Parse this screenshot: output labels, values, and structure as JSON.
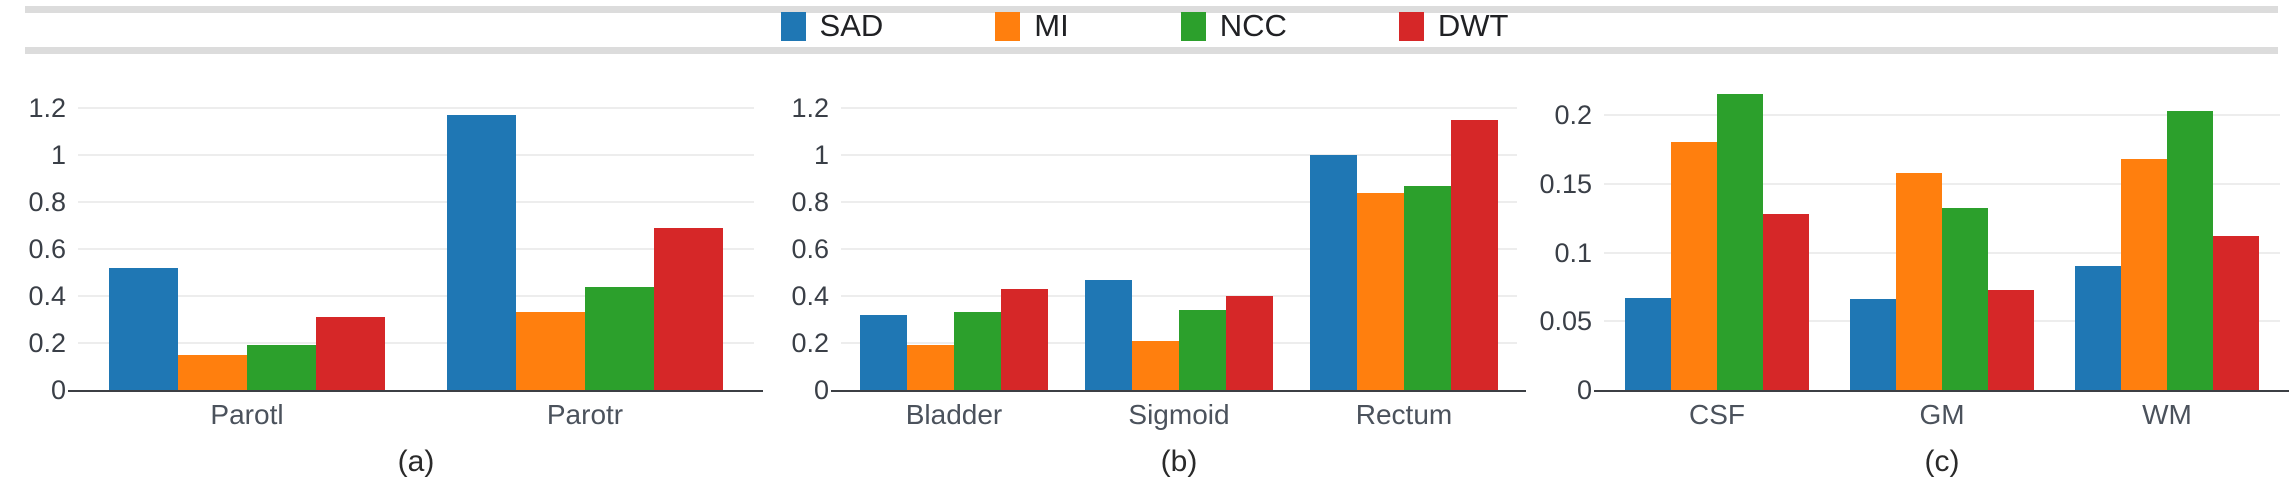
{
  "page": {
    "background": "#ffffff",
    "rule_color": "#dcdcdc"
  },
  "legend": {
    "items": [
      {
        "label": "SAD",
        "color": "#1f77b4"
      },
      {
        "label": "MI",
        "color": "#ff7f0e"
      },
      {
        "label": "NCC",
        "color": "#2ca02c"
      },
      {
        "label": "DWT",
        "color": "#d62728"
      }
    ]
  },
  "chart_data": [
    {
      "type": "bar",
      "panel": "a",
      "caption": "(a)",
      "categories": [
        "Parotl",
        "Parotr"
      ],
      "series": [
        {
          "name": "SAD",
          "color": "#1f77b4",
          "values": [
            0.52,
            1.17
          ]
        },
        {
          "name": "MI",
          "color": "#ff7f0e",
          "values": [
            0.15,
            0.33
          ]
        },
        {
          "name": "NCC",
          "color": "#2ca02c",
          "values": [
            0.19,
            0.44
          ]
        },
        {
          "name": "DWT",
          "color": "#d62728",
          "values": [
            0.31,
            0.69
          ]
        }
      ],
      "ylim": [
        0,
        1.3
      ],
      "yticks": [
        0,
        0.2,
        0.4,
        0.6,
        0.8,
        1,
        1.2
      ],
      "ytick_labels": [
        "0",
        "0.2",
        "0.4",
        "0.6",
        "0.8",
        "1",
        "1.2"
      ],
      "grid": true,
      "legend_position": "shared-top"
    },
    {
      "type": "bar",
      "panel": "b",
      "caption": "(b)",
      "categories": [
        "Bladder",
        "Sigmoid",
        "Rectum"
      ],
      "series": [
        {
          "name": "SAD",
          "color": "#1f77b4",
          "values": [
            0.32,
            0.47,
            1.0
          ]
        },
        {
          "name": "MI",
          "color": "#ff7f0e",
          "values": [
            0.19,
            0.21,
            0.84
          ]
        },
        {
          "name": "NCC",
          "color": "#2ca02c",
          "values": [
            0.33,
            0.34,
            0.87
          ]
        },
        {
          "name": "DWT",
          "color": "#d62728",
          "values": [
            0.43,
            0.4,
            1.15
          ]
        }
      ],
      "ylim": [
        0,
        1.3
      ],
      "yticks": [
        0,
        0.2,
        0.4,
        0.6,
        0.8,
        1,
        1.2
      ],
      "ytick_labels": [
        "0",
        "0.2",
        "0.4",
        "0.6",
        "0.8",
        "1",
        "1.2"
      ],
      "grid": true,
      "legend_position": "shared-top"
    },
    {
      "type": "bar",
      "panel": "c",
      "caption": "(c)",
      "categories": [
        "CSF",
        "GM",
        "WM"
      ],
      "series": [
        {
          "name": "SAD",
          "color": "#1f77b4",
          "values": [
            0.067,
            0.066,
            0.09
          ]
        },
        {
          "name": "MI",
          "color": "#ff7f0e",
          "values": [
            0.18,
            0.158,
            0.168
          ]
        },
        {
          "name": "NCC",
          "color": "#2ca02c",
          "values": [
            0.215,
            0.132,
            0.203
          ]
        },
        {
          "name": "DWT",
          "color": "#d62728",
          "values": [
            0.128,
            0.073,
            0.112
          ]
        }
      ],
      "ylim": [
        0,
        0.22
      ],
      "yticks": [
        0,
        0.05,
        0.1,
        0.15,
        0.2
      ],
      "ytick_labels": [
        "0",
        "0.05",
        "0.1",
        "0.15",
        "0.2"
      ],
      "grid": true,
      "legend_position": "shared-top"
    }
  ]
}
